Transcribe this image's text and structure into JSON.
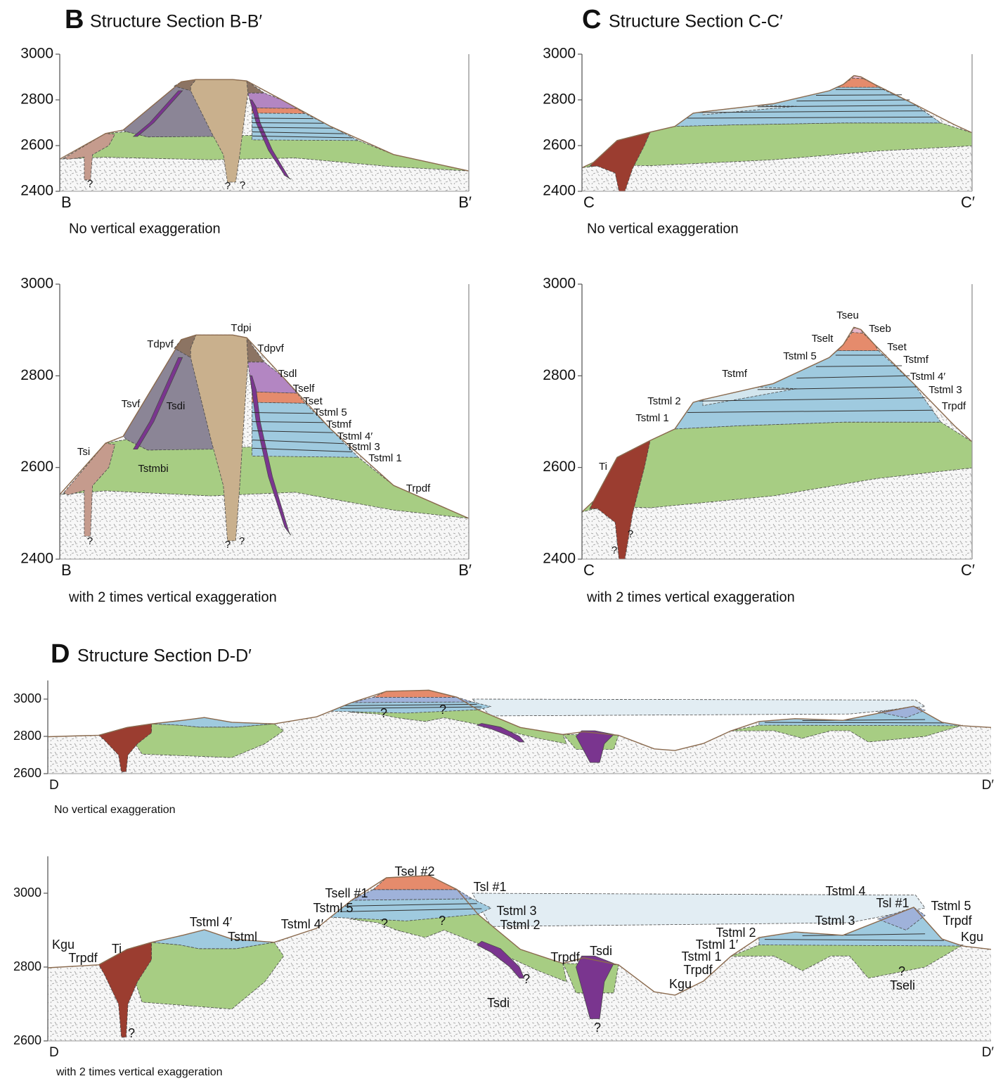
{
  "panels": [
    {
      "letter": "B",
      "title": "Structure Section B-B′",
      "sections": [
        {
          "ylim": [
            2400,
            3000
          ],
          "yticks": [
            2400,
            2600,
            2800,
            3000
          ],
          "start": "B",
          "end": "B′",
          "caption": "No vertical exaggeration",
          "labels": [
            "?",
            "?",
            "?"
          ]
        },
        {
          "ylim": [
            2400,
            3000
          ],
          "yticks": [
            2400,
            2600,
            2800,
            3000
          ],
          "start": "B",
          "end": "B′",
          "caption": "with 2 times vertical exaggeration",
          "labels": [
            "Tdpi",
            "Tdpvf",
            "Tdpvf",
            "Tsdl",
            "Tself",
            "Tset",
            "Tstml 5",
            "Tstmf",
            "Tstml 4′",
            "Tstml 3",
            "Tstml 1",
            "Trpdf",
            "Tsvf",
            "Tsdi",
            "Tsi",
            "Tstmbi",
            "?",
            "?",
            "?"
          ]
        }
      ]
    },
    {
      "letter": "C",
      "title": "Structure Section C-C′",
      "sections": [
        {
          "ylim": [
            2400,
            3000
          ],
          "yticks": [
            2400,
            2600,
            2800,
            3000
          ],
          "start": "C",
          "end": "C′",
          "caption": "No vertical exaggeration"
        },
        {
          "ylim": [
            2400,
            3000
          ],
          "yticks": [
            2400,
            2600,
            2800,
            3000
          ],
          "start": "C",
          "end": "C′",
          "caption": "with 2 times vertical exaggeration",
          "labels": [
            "Tseu",
            "Tseb",
            "Tselt",
            "Tset",
            "Tstml 5",
            "Tstmf",
            "Tstmf",
            "Tstml 4′",
            "Tstml 3",
            "Trpdf",
            "Tstml 2",
            "Tstml  1",
            "Ti",
            "?",
            "?"
          ]
        }
      ]
    },
    {
      "letter": "D",
      "title": "Structure Section D-D′",
      "sections": [
        {
          "ylim": [
            2600,
            3100
          ],
          "yticks": [
            2600,
            2800,
            3000
          ],
          "start": "D",
          "end": "D′",
          "caption": "No vertical exaggeration",
          "labels": [
            "?",
            "?"
          ]
        },
        {
          "ylim": [
            2600,
            3100
          ],
          "yticks": [
            2600,
            2800,
            3000
          ],
          "start": "D",
          "end": "D′",
          "caption": "with 2 times vertical exaggeration",
          "labels": [
            "Kgu",
            "Trpdf",
            "Ti",
            "Tstml 4′",
            "Tstml",
            "Tstml 4′",
            "Tsell #1",
            "Tstml 5",
            "Tsel #2",
            "Tsl #1",
            "Tstml 3",
            "Tstml 2",
            "Trpdf",
            "Tsdi",
            "Tsdi",
            "Kgu",
            "Tstml 2",
            "Tstml 1′",
            "Tstml 1",
            "Trpdf",
            "Tstml 4",
            "Tsl #1",
            "Tstml 5",
            "Trpdf",
            "Kgu",
            "Tstml 3",
            "Tseli",
            "?",
            "?",
            "?",
            "?",
            "?",
            "?"
          ]
        }
      ]
    }
  ]
}
